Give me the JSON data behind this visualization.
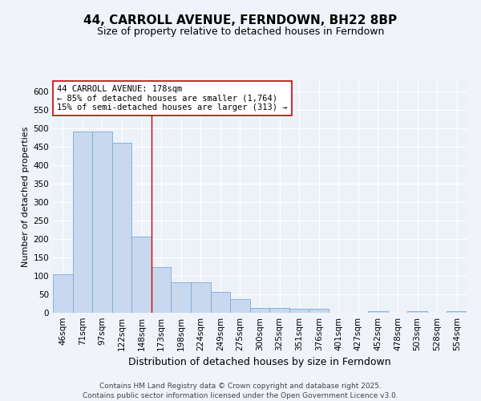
{
  "title": "44, CARROLL AVENUE, FERNDOWN, BH22 8BP",
  "subtitle": "Size of property relative to detached houses in Ferndown",
  "xlabel": "Distribution of detached houses by size in Ferndown",
  "ylabel": "Number of detached properties",
  "categories": [
    "46sqm",
    "71sqm",
    "97sqm",
    "122sqm",
    "148sqm",
    "173sqm",
    "198sqm",
    "224sqm",
    "249sqm",
    "275sqm",
    "300sqm",
    "325sqm",
    "351sqm",
    "376sqm",
    "401sqm",
    "427sqm",
    "452sqm",
    "478sqm",
    "503sqm",
    "528sqm",
    "554sqm"
  ],
  "values": [
    105,
    490,
    490,
    460,
    207,
    123,
    82,
    82,
    57,
    38,
    14,
    14,
    10,
    11,
    0,
    0,
    5,
    0,
    5,
    0,
    5
  ],
  "bar_color": "#c8d8ef",
  "bar_edge_color": "#7baad4",
  "grid_color": "#dce8f5",
  "background_color": "#f0f4fa",
  "plot_bg_color": "#edf2f9",
  "vline_color": "#cc0000",
  "vline_x_idx": 4.5,
  "annotation_text": "44 CARROLL AVENUE: 178sqm\n← 85% of detached houses are smaller (1,764)\n15% of semi-detached houses are larger (313) →",
  "annotation_box_facecolor": "#ffffff",
  "annotation_box_edgecolor": "#cc0000",
  "ylim": [
    0,
    630
  ],
  "yticks": [
    0,
    50,
    100,
    150,
    200,
    250,
    300,
    350,
    400,
    450,
    500,
    550,
    600
  ],
  "footer": "Contains HM Land Registry data © Crown copyright and database right 2025.\nContains public sector information licensed under the Open Government Licence v3.0.",
  "title_fontsize": 11,
  "subtitle_fontsize": 9,
  "xlabel_fontsize": 9,
  "ylabel_fontsize": 8,
  "tick_fontsize": 7.5,
  "annotation_fontsize": 7.5,
  "footer_fontsize": 6.5
}
